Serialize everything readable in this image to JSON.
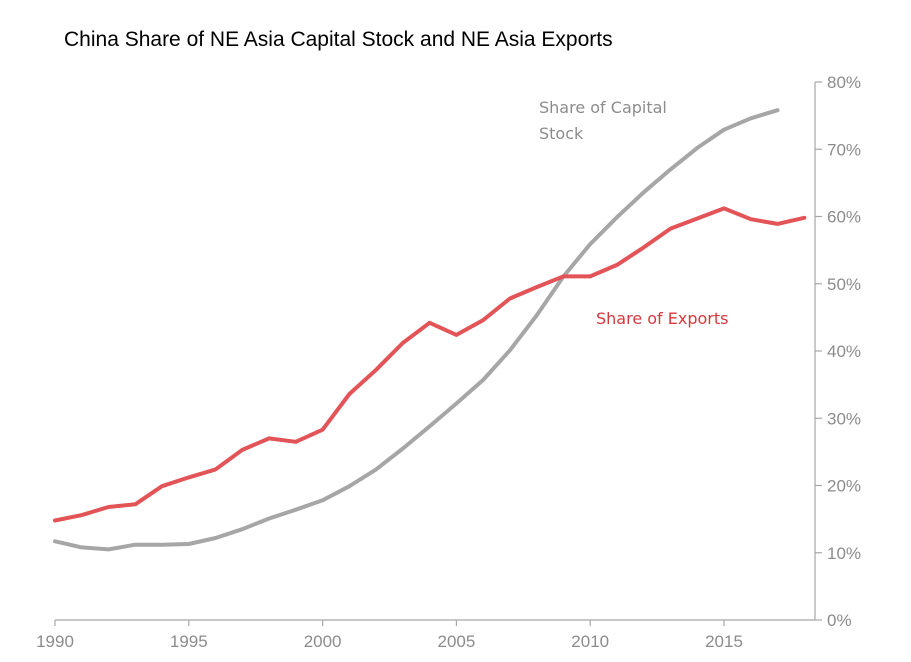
{
  "chart_data": {
    "type": "line",
    "title": "China Share of NE Asia Capital Stock and NE Asia Exports",
    "xlabel": "",
    "ylabel": "",
    "xlim": [
      1990,
      2018.4
    ],
    "ylim": [
      0,
      80
    ],
    "x_ticks": [
      1990,
      1995,
      2000,
      2005,
      2010,
      2015
    ],
    "x_tick_labels": [
      "1990",
      "1995",
      "2000",
      "2005",
      "2010",
      "2015"
    ],
    "y_ticks": [
      0,
      10,
      20,
      30,
      40,
      50,
      60,
      70,
      80
    ],
    "y_tick_labels": [
      "0%",
      "10%",
      "20%",
      "30%",
      "40%",
      "50%",
      "60%",
      "70%",
      "80%"
    ],
    "y_axis_position": "right",
    "grid": false,
    "legend": "none",
    "series": [
      {
        "name": "Share of Capital Stock",
        "label_lines": [
          "Share of Capital",
          "Stock"
        ],
        "color": "#a6a6a6",
        "x": [
          1990,
          1991,
          1992,
          1993,
          1994,
          1995,
          1996,
          1997,
          1998,
          1999,
          2000,
          2001,
          2002,
          2003,
          2004,
          2005,
          2006,
          2007,
          2008,
          2009,
          2010,
          2011,
          2012,
          2013,
          2014,
          2015,
          2016,
          2017
        ],
        "values": [
          11.7,
          10.8,
          10.5,
          11.2,
          11.2,
          11.3,
          12.2,
          13.5,
          15.1,
          16.4,
          17.8,
          19.9,
          22.4,
          25.5,
          28.8,
          32.2,
          35.7,
          40.1,
          45.3,
          51.1,
          55.9,
          59.9,
          63.6,
          67.0,
          70.2,
          72.9,
          74.6,
          75.8
        ]
      },
      {
        "name": "Share of Exports",
        "label_lines": [
          "Share of Exports"
        ],
        "color": "#e25457",
        "x": [
          1990,
          1991,
          1992,
          1993,
          1994,
          1995,
          1996,
          1997,
          1998,
          1999,
          2000,
          2001,
          2002,
          2003,
          2004,
          2005,
          2006,
          2007,
          2008,
          2009,
          2010,
          2011,
          2012,
          2013,
          2014,
          2015,
          2016,
          2017,
          2018
        ],
        "values": [
          14.8,
          15.6,
          16.8,
          17.2,
          19.9,
          21.2,
          22.4,
          25.3,
          27.0,
          26.5,
          28.3,
          33.6,
          37.2,
          41.2,
          44.2,
          42.4,
          44.6,
          47.8,
          49.5,
          51.1,
          51.1,
          52.8,
          55.4,
          58.2,
          59.7,
          61.2,
          59.6,
          58.9,
          59.8
        ]
      }
    ]
  }
}
